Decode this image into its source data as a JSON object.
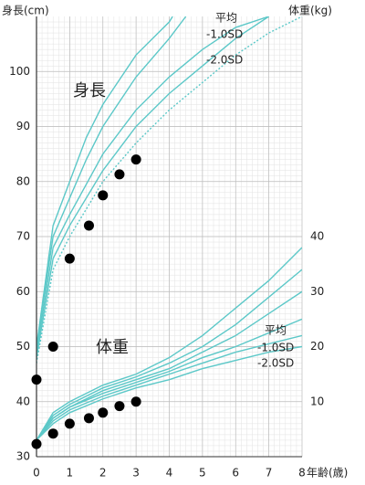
{
  "chart_data": {
    "type": "line",
    "y_label": "身長(cm)",
    "y2_label": "体重(kg)",
    "x_label": "年齢(歳)",
    "annotations": [
      "身長",
      "体重",
      "平均",
      "-1.0SD",
      "-2.0SD",
      "平均",
      "-1.0SD",
      "-2.0SD"
    ],
    "xlim": [
      0,
      8
    ],
    "xticks": [
      0,
      1,
      2,
      3,
      4,
      5,
      6,
      7,
      8
    ],
    "ylim": [
      30,
      110
    ],
    "yticks": [
      30,
      40,
      50,
      60,
      70,
      80,
      90,
      100
    ],
    "y2lim": [
      0,
      80
    ],
    "y2ticks": [
      10,
      20,
      30,
      40
    ],
    "grid": true,
    "series": [
      {
        "color": "#5cc8c8",
        "x": [
          0,
          0.5,
          1,
          1.5,
          2,
          3,
          4,
          4.1
        ],
        "values": [
          50,
          72,
          80,
          88,
          94,
          103,
          109,
          110
        ]
      },
      {
        "color": "#5cc8c8",
        "x": [
          0,
          0.5,
          1,
          1.5,
          2,
          3,
          4,
          4.5
        ],
        "values": [
          50,
          70,
          77,
          84,
          90,
          99,
          106,
          110
        ]
      },
      {
        "name": "平均",
        "color": "#5cc8c8",
        "x": [
          0,
          0.5,
          1,
          2,
          3,
          4,
          5,
          6,
          7
        ],
        "values": [
          49,
          68,
          74,
          85,
          93,
          99,
          104,
          108,
          110
        ]
      },
      {
        "name": "-1.0SD",
        "color": "#5cc8c8",
        "x": [
          0,
          0.5,
          1,
          2,
          3,
          4,
          5,
          6,
          7
        ],
        "values": [
          48,
          66,
          72,
          82,
          90,
          96,
          101,
          106,
          110
        ]
      },
      {
        "name": "-2.0SD",
        "color": "#5cc8c8",
        "style": "dotted",
        "x": [
          0,
          0.5,
          1,
          2,
          3,
          4,
          5,
          6,
          7,
          8
        ],
        "values": [
          47,
          64,
          70,
          80,
          87,
          93,
          98,
          103,
          107,
          110
        ]
      },
      {
        "color": "#5cc8c8",
        "axis": "y2",
        "x": [
          0,
          0.5,
          1,
          2,
          3,
          4,
          5,
          6,
          7,
          8
        ],
        "values": [
          3,
          8,
          10,
          13,
          15,
          18,
          22,
          27,
          32,
          38
        ]
      },
      {
        "color": "#5cc8c8",
        "axis": "y2",
        "x": [
          0,
          0.5,
          1,
          2,
          3,
          4,
          5,
          6,
          7,
          8
        ],
        "values": [
          3,
          7.5,
          9.5,
          12.5,
          14.5,
          17,
          20,
          24,
          29,
          34
        ]
      },
      {
        "color": "#5cc8c8",
        "axis": "y2",
        "x": [
          0,
          0.5,
          1,
          2,
          3,
          4,
          5,
          6,
          7,
          8
        ],
        "values": [
          3,
          7,
          9,
          12,
          14,
          16,
          19,
          22,
          26,
          30
        ]
      },
      {
        "name": "平均",
        "color": "#5cc8c8",
        "axis": "y2",
        "x": [
          0,
          0.5,
          1,
          2,
          3,
          4,
          5,
          6,
          7,
          8
        ],
        "values": [
          3,
          7,
          9,
          11.5,
          13.5,
          15.5,
          18,
          20,
          22.5,
          25
        ]
      },
      {
        "name": "-1.0SD",
        "color": "#5cc8c8",
        "axis": "y2",
        "x": [
          0,
          0.5,
          1,
          2,
          3,
          4,
          5,
          6,
          7,
          8
        ],
        "values": [
          3,
          6.5,
          8.5,
          11,
          13,
          15,
          17,
          19,
          20.5,
          22
        ]
      },
      {
        "name": "-2.0SD",
        "color": "#5cc8c8",
        "axis": "y2",
        "x": [
          0,
          0.5,
          1,
          2,
          3,
          4,
          5,
          6,
          7,
          8
        ],
        "values": [
          3,
          6,
          8,
          10.5,
          12.5,
          14,
          16,
          17.5,
          19,
          20
        ]
      },
      {
        "color": "#000000",
        "marker": true,
        "x": [
          0,
          0.5,
          1,
          1.58,
          2,
          2.5,
          3
        ],
        "values": [
          44,
          50,
          66,
          72,
          77.5,
          81.3,
          84
        ]
      },
      {
        "color": "#000000",
        "marker": true,
        "axis": "y2",
        "x": [
          0,
          0.5,
          1,
          1.58,
          2,
          2.5,
          3
        ],
        "values": [
          2.3,
          4.2,
          6,
          7,
          8,
          9.2,
          10
        ]
      }
    ]
  }
}
